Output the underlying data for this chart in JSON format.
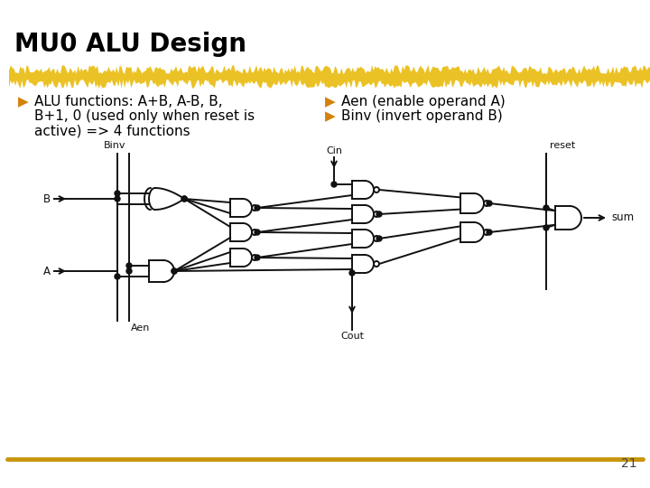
{
  "title": "MU0 ALU Design",
  "title_fontsize": 20,
  "title_color": "#000000",
  "bullet_color": "#D4820A",
  "bullet_symbol": "▶",
  "bullet1_line1": "ALU functions: A+B, A-B, B,",
  "bullet1_line2": "B+1, 0 (used only when reset is",
  "bullet1_line3": "active) => 4 functions",
  "bullet2": "Aen (enable operand A)",
  "bullet3": "Binv (invert operand B)",
  "text_fontsize": 11,
  "text_color": "#000000",
  "background_color": "#ffffff",
  "gold_color_top": "#D4A017",
  "gold_color_bottom": "#C8960A",
  "page_number": "21",
  "line_color": "#111111"
}
